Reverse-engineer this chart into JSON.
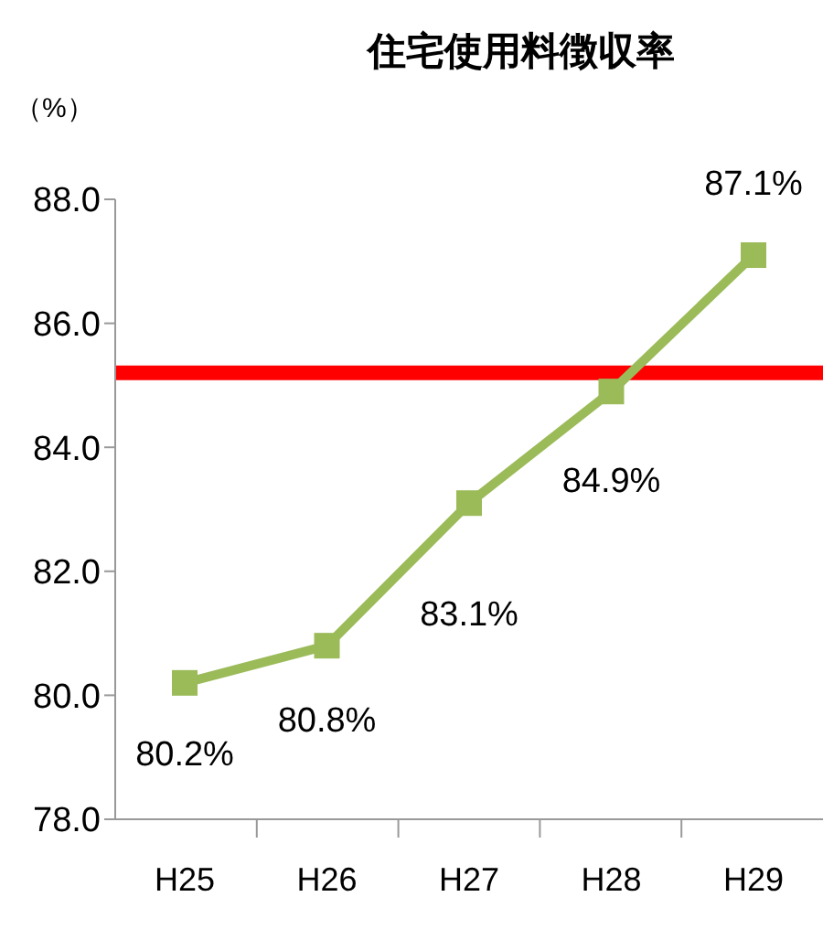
{
  "chart_data": {
    "type": "line",
    "title": "住宅使用料徴収率",
    "ylabel": "（%）",
    "categories": [
      "H25",
      "H26",
      "H27",
      "H28",
      "H29"
    ],
    "series": [
      {
        "color": "#9bbb59",
        "values": [
          80.2,
          80.8,
          83.1,
          84.9,
          87.1
        ],
        "value_labels": [
          "80.2%",
          "80.8%",
          "83.1%",
          "84.9%",
          "87.1%"
        ]
      }
    ],
    "ylim": [
      78,
      88
    ],
    "yticks": [
      {
        "value": 78,
        "label": "78.0"
      },
      {
        "value": 80,
        "label": "80.0"
      },
      {
        "value": 82,
        "label": "82.0"
      },
      {
        "value": 84,
        "label": "84.0"
      },
      {
        "value": 86,
        "label": "86.0"
      },
      {
        "value": 88,
        "label": "88.0"
      }
    ],
    "ref_lines": [
      {
        "axis": "y",
        "value": 85.2,
        "color": "#ff0000"
      }
    ],
    "grid": false,
    "legend": false,
    "marker": "square",
    "line_style": "solid"
  }
}
